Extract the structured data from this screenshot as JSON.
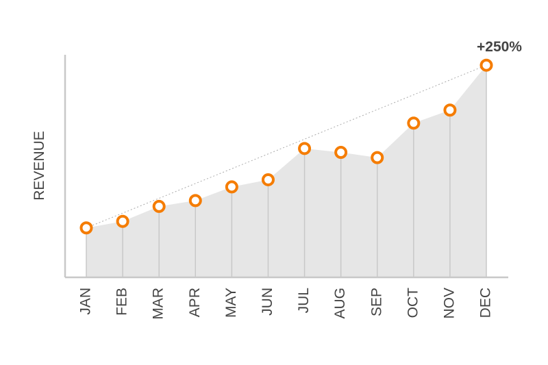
{
  "chart_data": {
    "type": "area-line",
    "y_axis_label": "REVENUE",
    "annotation": "+250%",
    "categories": [
      "JAN",
      "FEB",
      "MAR",
      "APR",
      "MAY",
      "JUN",
      "JUL",
      "AUG",
      "SEP",
      "OCT",
      "NOV",
      "DEC"
    ],
    "values": [
      100,
      110,
      133,
      142,
      163,
      174,
      222,
      216,
      208,
      261,
      281,
      350
    ],
    "color": "#f57c00",
    "area_color": "#e6e6e6",
    "ylim": [
      24,
      366
    ]
  }
}
